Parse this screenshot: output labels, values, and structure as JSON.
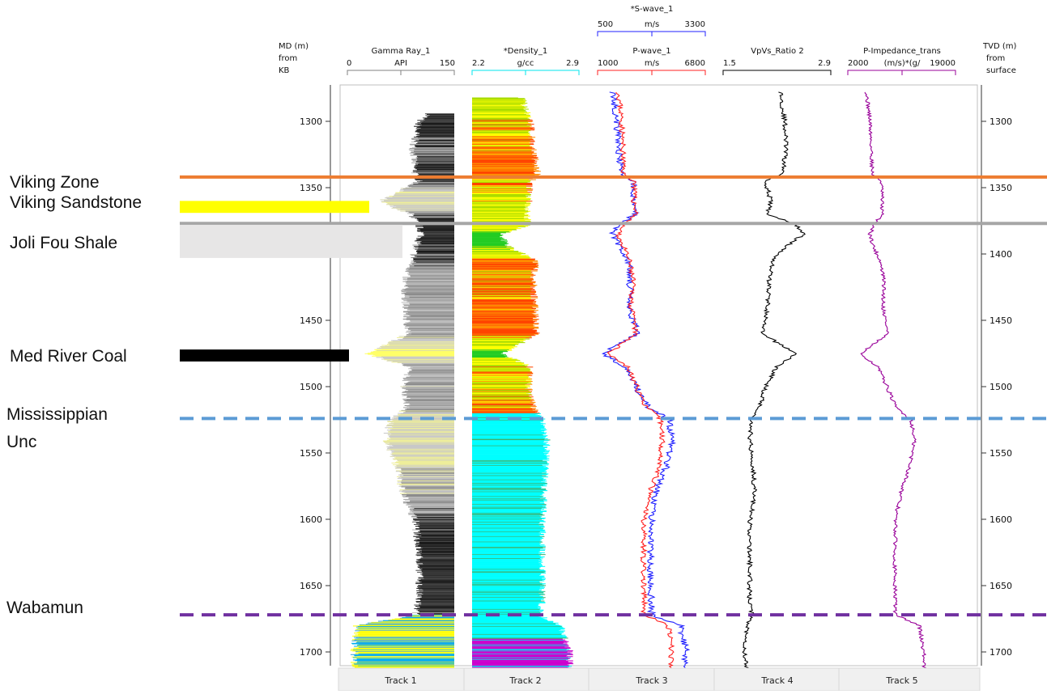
{
  "chart_data": {
    "type": "line",
    "depth_axis_left": {
      "label_lines": [
        "MD (m)",
        "from",
        "KB"
      ],
      "ticks": [
        1300,
        1350,
        1400,
        1450,
        1500,
        1550,
        1600,
        1650,
        1700
      ]
    },
    "depth_axis_right": {
      "label_lines": [
        "TVD (m)",
        "from",
        "surface"
      ],
      "ticks": [
        1300,
        1350,
        1400,
        1450,
        1500,
        1550,
        1600,
        1650,
        1700
      ]
    },
    "depth_range": [
      1278,
      1715
    ],
    "tracks": [
      {
        "name": "Track 1",
        "curves": [
          {
            "name": "Gamma Ray_1",
            "unit": "API",
            "min": "0",
            "max": "150",
            "color": "#808080"
          }
        ]
      },
      {
        "name": "Track 2",
        "curves": [
          {
            "name": "*Density_1",
            "unit": "g/cc",
            "min": "2.2",
            "max": "2.9",
            "color": "#00e5ee"
          }
        ]
      },
      {
        "name": "Track 3",
        "curves": [
          {
            "name": "*S-wave_1",
            "unit": "m/s",
            "min": "500",
            "max": "3300",
            "color": "#2020ff"
          },
          {
            "name": "P-wave_1",
            "unit": "m/s",
            "min": "1000",
            "max": "6800",
            "color": "#ff2020"
          }
        ]
      },
      {
        "name": "Track 4",
        "curves": [
          {
            "name": "VpVs_Ratio 2",
            "unit": "",
            "min": "1.5",
            "max": "2.9",
            "color": "#000000"
          }
        ]
      },
      {
        "name": "Track 5",
        "curves": [
          {
            "name": "P-Impedance_trans",
            "unit": "(m/s)*(g/",
            "min": "2000",
            "max": "19000",
            "color": "#990099"
          }
        ]
      }
    ],
    "formations": [
      {
        "name": "Viking Zone",
        "depth": 1342,
        "line_color": "#ed7d31",
        "style": "solid"
      },
      {
        "name": "Viking Sandstone",
        "top": 1360,
        "base": 1369,
        "fill": "#ffff00"
      },
      {
        "name": "Joli Fou Shale",
        "line_depth": 1377,
        "top": 1378,
        "base": 1403,
        "fill": "#e7e6e6",
        "line_color": "#a6a6a6",
        "style": "solid"
      },
      {
        "name": "Med River Coal",
        "top": 1472,
        "base": 1481,
        "fill": "#000000"
      },
      {
        "name": "Mississippian Unc",
        "depth": 1524,
        "line_color": "#5b9bd5",
        "style": "dashed"
      },
      {
        "name": "Wabamun",
        "depth": 1672,
        "line_color": "#7030a0",
        "style": "dashed"
      }
    ],
    "log_profiles": {
      "depths": [
        1280,
        1300,
        1320,
        1340,
        1345,
        1360,
        1370,
        1378,
        1385,
        1395,
        1405,
        1420,
        1440,
        1460,
        1475,
        1485,
        1500,
        1515,
        1525,
        1540,
        1560,
        1580,
        1600,
        1620,
        1640,
        1660,
        1672,
        1680,
        1700,
        1712
      ],
      "gamma_ray": [
        150,
        100,
        92,
        95,
        100,
        45,
        90,
        100,
        105,
        95,
        92,
        80,
        82,
        85,
        30,
        88,
        80,
        85,
        60,
        55,
        70,
        78,
        95,
        100,
        102,
        100,
        95,
        12,
        10,
        10
      ],
      "density": [
        2.52,
        2.58,
        2.6,
        2.63,
        2.58,
        2.57,
        2.56,
        2.57,
        2.38,
        2.45,
        2.62,
        2.6,
        2.61,
        2.62,
        2.4,
        2.58,
        2.57,
        2.6,
        2.66,
        2.69,
        2.68,
        2.67,
        2.66,
        2.66,
        2.66,
        2.66,
        2.64,
        2.78,
        2.84,
        2.84
      ],
      "p_wave": [
        2150,
        2300,
        2350,
        2400,
        3000,
        2950,
        3100,
        2400,
        2100,
        2400,
        2700,
        2900,
        2800,
        3050,
        1600,
        2600,
        3100,
        3600,
        4400,
        4500,
        4350,
        3800,
        3500,
        3500,
        3450,
        3500,
        3500,
        4800,
        5000,
        4900
      ],
      "s_wave": [
        900,
        1000,
        1050,
        1100,
        1450,
        1400,
        1500,
        1050,
        900,
        1100,
        1300,
        1350,
        1300,
        1550,
        650,
        1200,
        1500,
        1800,
        2350,
        2450,
        2300,
        2000,
        1900,
        1880,
        1860,
        1900,
        1900,
        2650,
        2800,
        2750
      ],
      "vpvs": [
        2.25,
        2.3,
        2.32,
        2.27,
        2.05,
        2.12,
        2.08,
        2.45,
        2.55,
        2.3,
        2.15,
        2.1,
        2.08,
        2.0,
        2.45,
        2.2,
        2.05,
        1.98,
        1.87,
        1.85,
        1.89,
        1.91,
        1.85,
        1.84,
        1.85,
        1.84,
        1.88,
        1.82,
        1.78,
        1.8
      ],
      "p_impedance": [
        5000,
        5500,
        5700,
        5900,
        7300,
        7400,
        7400,
        6200,
        5500,
        6100,
        7100,
        7700,
        7600,
        8300,
        4000,
        6700,
        8200,
        9500,
        12000,
        12500,
        11800,
        10400,
        9500,
        9500,
        9400,
        9500,
        9500,
        13300,
        14000,
        14000
      ]
    }
  }
}
